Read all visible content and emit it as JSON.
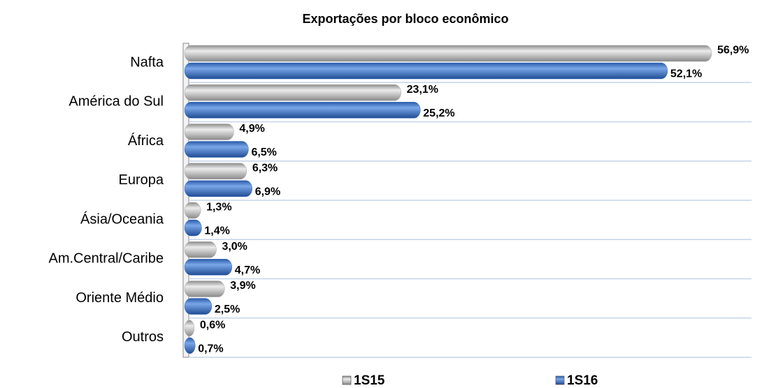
{
  "chart_data": {
    "type": "bar",
    "orientation": "horizontal",
    "title": "Exportações por bloco econômico",
    "categories": [
      "Nafta",
      "América do Sul",
      "África",
      "Europa",
      "Ásia/Oceania",
      "Am.Central/Caribe",
      "Oriente Médio",
      "Outros"
    ],
    "series": [
      {
        "name": "1S15",
        "color": "#a6a6a6",
        "values": [
          56.9,
          23.1,
          4.9,
          6.3,
          1.3,
          3.0,
          3.9,
          0.6
        ],
        "value_labels": [
          "56,9%",
          "23,1%",
          "4,9%",
          "6,3%",
          "1,3%",
          "3,0%",
          "3,9%",
          "0,6%"
        ]
      },
      {
        "name": "1S16",
        "color": "#3a6fc0",
        "values": [
          52.1,
          25.2,
          6.5,
          6.9,
          1.4,
          4.7,
          2.5,
          0.7
        ],
        "value_labels": [
          "52,1%",
          "25,2%",
          "6,5%",
          "6,9%",
          "1,4%",
          "4,7%",
          "2,5%",
          "0,7%"
        ]
      }
    ],
    "legend": "bottom"
  }
}
